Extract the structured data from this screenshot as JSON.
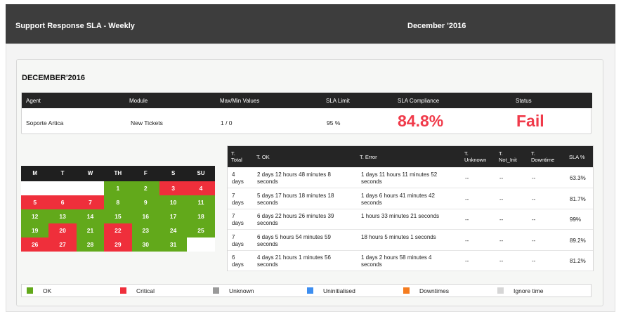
{
  "header": {
    "title": "Support Response SLA - Weekly",
    "period": "December '2016"
  },
  "section_title": "DECEMBER'2016",
  "sla_table": {
    "columns": [
      "Agent",
      "Module",
      "Max/Min Values",
      "SLA Limit",
      "SLA Compliance",
      "Status"
    ],
    "row": {
      "agent": "Soporte Artica",
      "module": "New Tickets",
      "maxmin": "1 / 0",
      "limit": "95 %",
      "compliance": "84.8%",
      "status": "Fail"
    }
  },
  "calendar": {
    "days": [
      "M",
      "T",
      "W",
      "TH",
      "F",
      "S",
      "SU"
    ],
    "cells": [
      {
        "label": "",
        "state": "empty"
      },
      {
        "label": "",
        "state": "empty"
      },
      {
        "label": "",
        "state": "empty"
      },
      {
        "label": "1",
        "state": "ok"
      },
      {
        "label": "2",
        "state": "ok"
      },
      {
        "label": "3",
        "state": "critical"
      },
      {
        "label": "4",
        "state": "critical"
      },
      {
        "label": "5",
        "state": "critical"
      },
      {
        "label": "6",
        "state": "critical"
      },
      {
        "label": "7",
        "state": "critical"
      },
      {
        "label": "8",
        "state": "ok"
      },
      {
        "label": "9",
        "state": "ok"
      },
      {
        "label": "10",
        "state": "ok"
      },
      {
        "label": "11",
        "state": "ok"
      },
      {
        "label": "12",
        "state": "ok"
      },
      {
        "label": "13",
        "state": "ok"
      },
      {
        "label": "14",
        "state": "ok"
      },
      {
        "label": "15",
        "state": "ok"
      },
      {
        "label": "16",
        "state": "ok"
      },
      {
        "label": "17",
        "state": "ok"
      },
      {
        "label": "18",
        "state": "ok"
      },
      {
        "label": "19",
        "state": "ok"
      },
      {
        "label": "20",
        "state": "critical"
      },
      {
        "label": "21",
        "state": "ok"
      },
      {
        "label": "22",
        "state": "critical"
      },
      {
        "label": "23",
        "state": "ok"
      },
      {
        "label": "24",
        "state": "ok"
      },
      {
        "label": "25",
        "state": "ok"
      },
      {
        "label": "26",
        "state": "critical"
      },
      {
        "label": "27",
        "state": "critical"
      },
      {
        "label": "28",
        "state": "ok"
      },
      {
        "label": "29",
        "state": "critical"
      },
      {
        "label": "30",
        "state": "ok"
      },
      {
        "label": "31",
        "state": "ok"
      },
      {
        "label": "",
        "state": "empty"
      }
    ]
  },
  "detail_table": {
    "columns": {
      "total": [
        "T.",
        "Total"
      ],
      "ok": "T. OK",
      "error": "T. Error",
      "unknown": [
        "T.",
        "Unknown"
      ],
      "not_init": [
        "T.",
        "Not_Init"
      ],
      "downtime": [
        "T.",
        "Downtime"
      ],
      "sla": "SLA %"
    },
    "rows": [
      {
        "total": [
          "4",
          "days"
        ],
        "ok": [
          "2 days 12 hours 48 minutes 8",
          "seconds"
        ],
        "error": [
          "1 days 11 hours 11 minutes 52",
          "seconds"
        ],
        "unknown": "--",
        "not_init": "--",
        "downtime": "--",
        "sla": "63.3%",
        "sla_state": "red"
      },
      {
        "total": [
          "7",
          "days"
        ],
        "ok": [
          "5 days 17 hours 18 minutes 18",
          "seconds"
        ],
        "error": [
          "1 days 6 hours 41 minutes 42",
          "seconds"
        ],
        "unknown": "--",
        "not_init": "--",
        "downtime": "--",
        "sla": "81.7%",
        "sla_state": "red"
      },
      {
        "total": [
          "7",
          "days"
        ],
        "ok": [
          "6 days 22 hours 26 minutes 39",
          "seconds"
        ],
        "error": [
          "1 hours 33 minutes 21 seconds",
          ""
        ],
        "unknown": "--",
        "not_init": "--",
        "downtime": "--",
        "sla": "99%",
        "sla_state": "green"
      },
      {
        "total": [
          "7",
          "days"
        ],
        "ok": [
          "6 days 5 hours 54 minutes 59",
          "seconds"
        ],
        "error": [
          "18 hours 5 minutes 1 seconds",
          ""
        ],
        "unknown": "--",
        "not_init": "--",
        "downtime": "--",
        "sla": "89.2%",
        "sla_state": "red"
      },
      {
        "total": [
          "6",
          "days"
        ],
        "ok": [
          "4 days 21 hours 1 minutes 56",
          "seconds"
        ],
        "error": [
          "1 days 2 hours 58 minutes 4",
          "seconds"
        ],
        "unknown": "--",
        "not_init": "--",
        "downtime": "--",
        "sla": "81.2%",
        "sla_state": "red"
      }
    ]
  },
  "legend": [
    {
      "label": "OK",
      "color": "#62a91b"
    },
    {
      "label": "Critical",
      "color": "#ef2f3b"
    },
    {
      "label": "Unknown",
      "color": "#9a9a9a"
    },
    {
      "label": "Uninitialised",
      "color": "#3d8ef0"
    },
    {
      "label": "Downtimes",
      "color": "#f57c1f"
    },
    {
      "label": "Ignore time",
      "color": "#d6d6d6"
    }
  ]
}
